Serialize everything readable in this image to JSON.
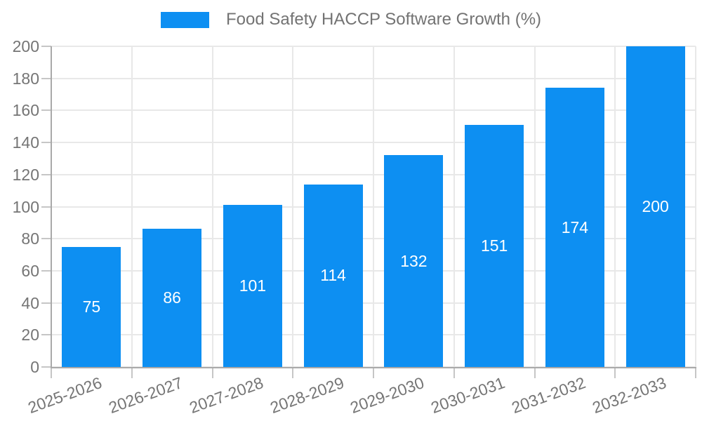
{
  "legend": {
    "label": "Food Safety HACCP Software Growth (%)"
  },
  "chart_data": {
    "type": "bar",
    "title": "Food Safety HACCP Software Growth (%)",
    "categories": [
      "2025-2026",
      "2026-2027",
      "2027-2028",
      "2028-2029",
      "2029-2030",
      "2030-2031",
      "2031-2032",
      "2032-2033"
    ],
    "values": [
      75,
      86,
      101,
      114,
      132,
      151,
      174,
      200
    ],
    "xlabel": "",
    "ylabel": "",
    "ylim": [
      0,
      200
    ],
    "ytick_step": 20,
    "yticks": [
      0,
      20,
      40,
      60,
      80,
      100,
      120,
      140,
      160,
      180,
      200
    ],
    "grid": true,
    "legend_position": "top-center",
    "bar_labels_inside": true,
    "xtick_rotation_deg": -20,
    "colors": {
      "bar": "#0d8ff2",
      "bar_label": "#ffffff",
      "axis_text": "#757575",
      "legend_text": "#737373",
      "grid": "#e8e8e8",
      "axis_line": "#a9a9a9",
      "tick": "#c6c6c6",
      "background": "#ffffff"
    }
  }
}
